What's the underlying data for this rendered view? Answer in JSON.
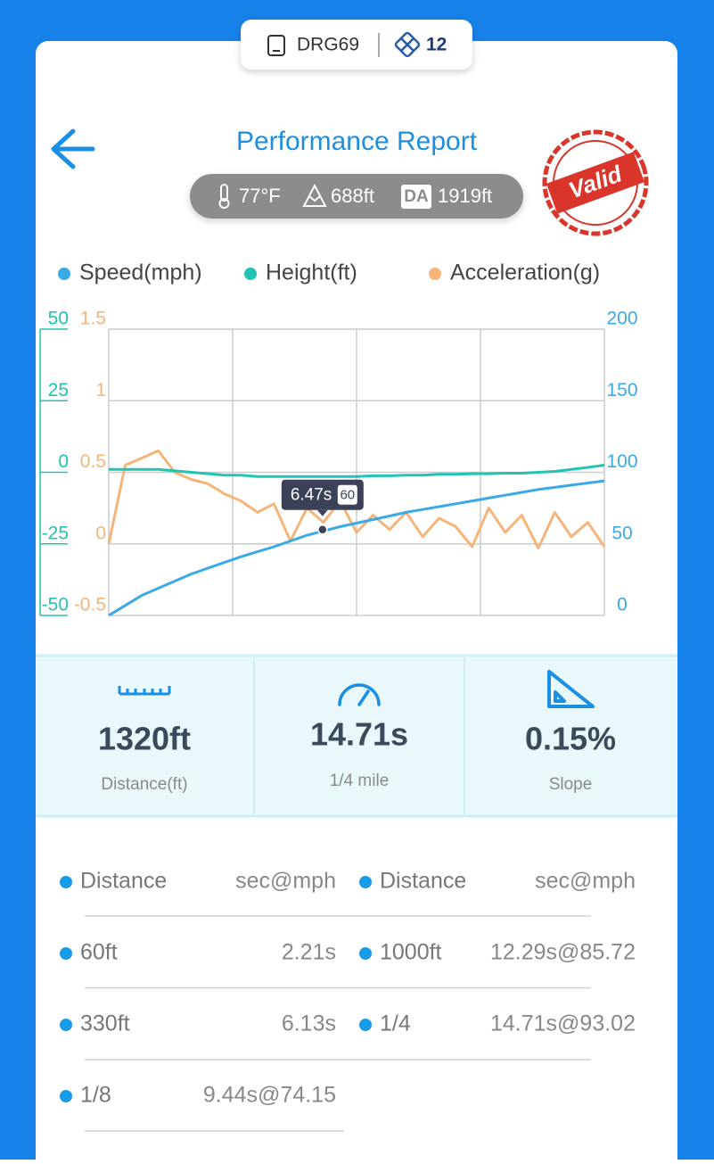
{
  "header": {
    "device": "DRG69",
    "count": "12"
  },
  "title": "Performance Report",
  "conditions": {
    "temperature": "77°F",
    "altitude": "688ft",
    "da_badge": "DA",
    "density_altitude": "1919ft"
  },
  "stamp": "Valid",
  "chart_data": {
    "type": "line",
    "xlim": [
      0,
      15
    ],
    "x": [
      0,
      0.5,
      1,
      1.5,
      2,
      2.5,
      3,
      3.5,
      4,
      4.5,
      5,
      5.5,
      6,
      6.5,
      7,
      7.5,
      8,
      8.5,
      9,
      9.5,
      10,
      10.5,
      11,
      11.5,
      12,
      12.5,
      13,
      13.5,
      14,
      14.5,
      15
    ],
    "ylim": [
      -50,
      50
    ],
    "yticks": [
      -50,
      -25,
      0,
      25,
      50
    ],
    "y2lim": [
      0,
      200
    ],
    "y2ticks": [
      0,
      50,
      100,
      150,
      200
    ],
    "y3lim": [
      -0.5,
      1.5
    ],
    "y3ticks": [
      -0.5,
      0,
      0.5,
      1,
      1.5
    ],
    "grid": true,
    "series": [
      {
        "name": "Speed(mph)",
        "color": "#3aa9e8",
        "axis": "y2",
        "values": [
          0,
          7,
          14,
          19,
          24,
          29,
          33,
          37,
          41,
          44.5,
          48,
          52,
          56,
          59,
          62,
          64.5,
          67,
          69.5,
          72,
          74,
          76,
          78,
          80,
          82,
          84,
          86,
          88,
          89.5,
          91,
          92.5,
          94
        ]
      },
      {
        "name": "Height(ft)",
        "color": "#22c3b3",
        "axis": "y",
        "values": [
          1,
          1,
          1,
          1,
          0.5,
          0,
          -0.5,
          -1,
          -1,
          -1.5,
          -1.5,
          -1.5,
          -1.5,
          -1.5,
          -1.5,
          -1.5,
          -1.2,
          -1.2,
          -1,
          -1,
          -0.7,
          -0.7,
          -0.5,
          -0.5,
          -0.3,
          -0.3,
          0,
          0.3,
          1,
          1.7,
          2.5
        ]
      },
      {
        "name": "Acceleration(g)",
        "color": "#f5b57a",
        "axis": "y3",
        "values": [
          0,
          0.55,
          0.6,
          0.65,
          0.5,
          0.45,
          0.42,
          0.35,
          0.3,
          0.22,
          0.28,
          0.02,
          0.25,
          0.15,
          0.3,
          0.08,
          0.2,
          0.1,
          0.22,
          0.05,
          0.18,
          0.12,
          -0.02,
          0.25,
          0.08,
          0.2,
          -0.03,
          0.22,
          0.05,
          0.15,
          -0.02
        ]
      }
    ],
    "tooltip": {
      "x": 6.47,
      "y": 60,
      "axis": "y2",
      "x_label": "6.47s",
      "y_label": "60"
    }
  },
  "stats": [
    {
      "value": "1320ft",
      "label": "Distance(ft)"
    },
    {
      "value": "14.71s",
      "label": "1/4 mile"
    },
    {
      "value": "0.15%",
      "label": "Slope"
    }
  ],
  "table": {
    "columns": [
      "Distance",
      "sec@mph"
    ],
    "rows": [
      [
        "60ft",
        "2.21s"
      ],
      [
        "330ft",
        "6.13s"
      ],
      [
        "1/8",
        "9.44s@74.15"
      ],
      [
        "1000ft",
        "12.29s@85.72"
      ],
      [
        "1/4",
        "14.71s@93.02"
      ]
    ]
  }
}
